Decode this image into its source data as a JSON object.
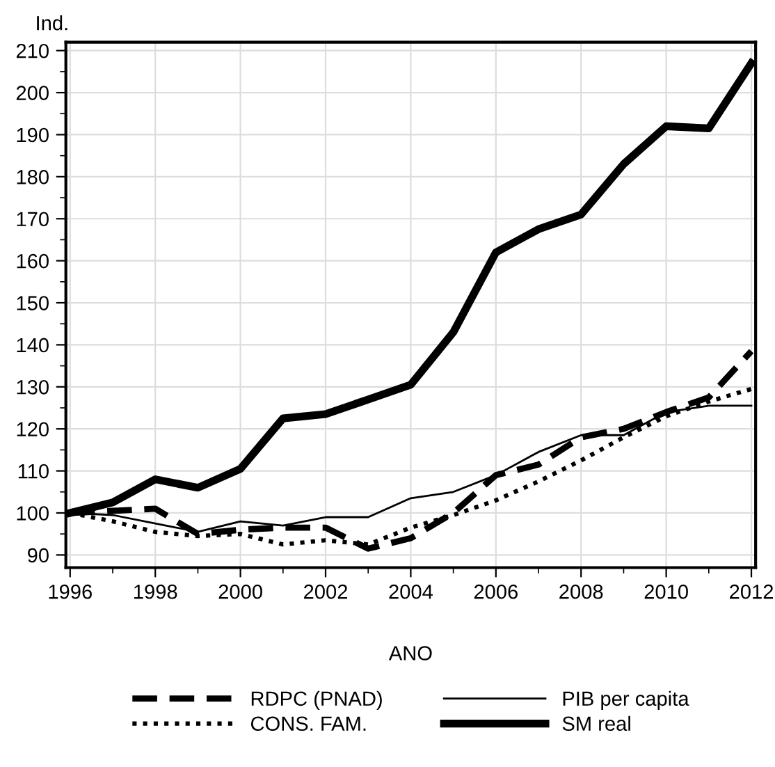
{
  "chart_data": {
    "type": "line",
    "ylabel": "Ind.",
    "xlabel": "ANO",
    "x": [
      1996,
      1997,
      1998,
      1999,
      2000,
      2001,
      2002,
      2003,
      2004,
      2005,
      2006,
      2007,
      2008,
      2009,
      2010,
      2011,
      2012
    ],
    "series": [
      {
        "name": "RDPC (PNAD)",
        "color": "#000000",
        "line_style": "dashed",
        "values": [
          100,
          100.5,
          101,
          95,
          96,
          96.5,
          96.5,
          91.5,
          94,
          100,
          109,
          111.5,
          118,
          120,
          124,
          127.5,
          138.5
        ]
      },
      {
        "name": "CONS. FAM.",
        "color": "#000000",
        "line_style": "dotted",
        "values": [
          100,
          98,
          95.5,
          94.5,
          95,
          92.5,
          93.5,
          92.5,
          96.5,
          99.5,
          103,
          107.5,
          112.5,
          118,
          123,
          126.5,
          129.5
        ]
      },
      {
        "name": "PIB per capita",
        "color": "#000000",
        "line_style": "solid",
        "values": [
          100,
          99.5,
          97.5,
          95.5,
          98,
          97,
          99,
          99,
          103.5,
          105,
          109,
          114.5,
          118.5,
          118.5,
          124,
          125.5,
          125.5
        ]
      },
      {
        "name": "SM real",
        "color": "#000000",
        "line_style": "solid",
        "values": [
          100,
          102.5,
          108,
          106,
          110.5,
          122.5,
          123.5,
          127,
          130.5,
          143,
          162,
          167.5,
          171,
          183,
          192,
          191.5,
          207
        ]
      }
    ],
    "xlim": [
      1995.9,
      2012.1
    ],
    "xticks": [
      1996,
      1998,
      2000,
      2002,
      2004,
      2006,
      2008,
      2010,
      2012
    ],
    "ylim": [
      87,
      212
    ],
    "yticks": [
      90,
      100,
      110,
      120,
      130,
      140,
      150,
      160,
      170,
      180,
      190,
      200,
      210
    ],
    "grid": true,
    "legend": "bottom",
    "marker": "none"
  }
}
